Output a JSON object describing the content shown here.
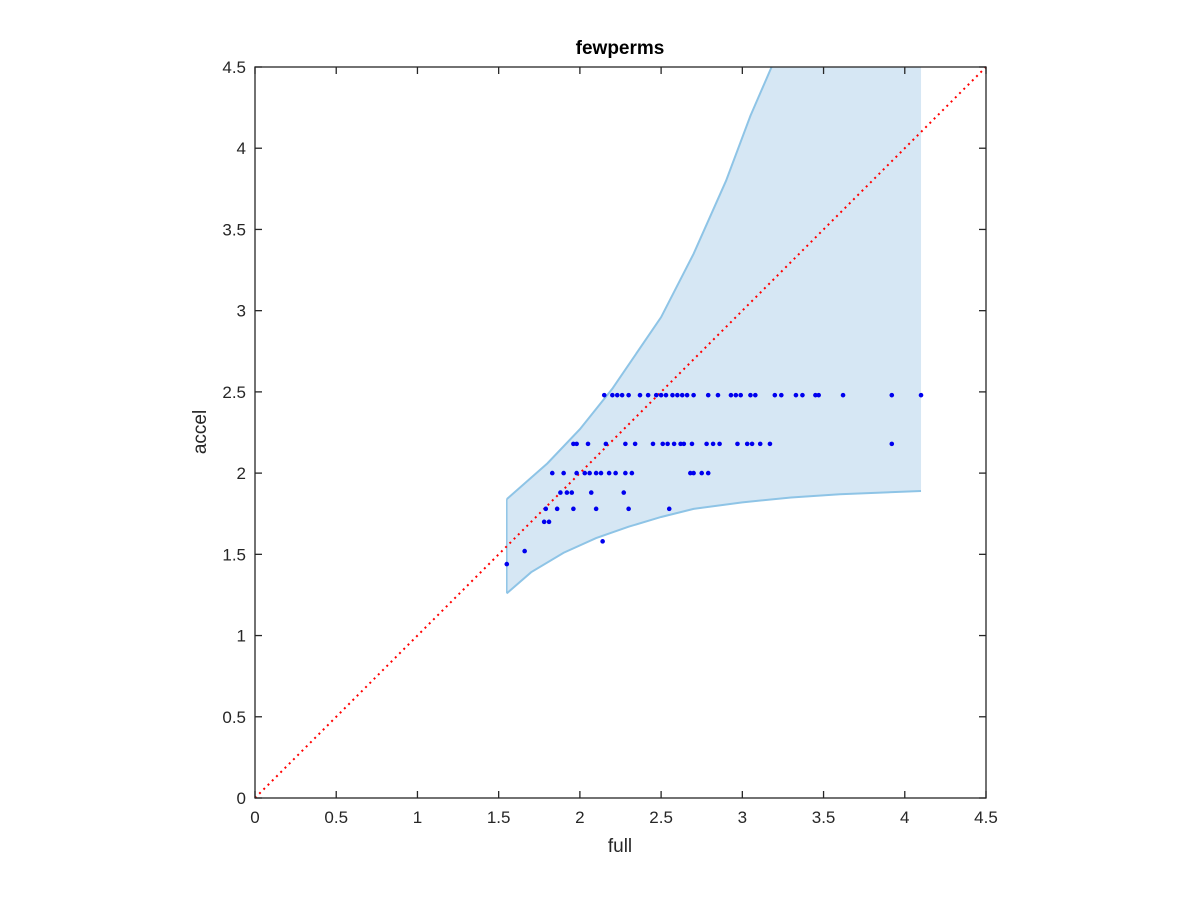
{
  "chart_data": {
    "type": "scatter",
    "title": "fewperms",
    "xlabel": "full",
    "ylabel": "accel",
    "xlim": [
      0,
      4.5
    ],
    "ylim": [
      0,
      4.5
    ],
    "xticks": [
      "0",
      "0.5",
      "1",
      "1.5",
      "2",
      "2.5",
      "3",
      "3.5",
      "4",
      "4.5"
    ],
    "yticks": [
      "0",
      "0.5",
      "1",
      "1.5",
      "2",
      "2.5",
      "3",
      "3.5",
      "4",
      "4.5"
    ],
    "grid": false,
    "reference_line": {
      "style": "dotted",
      "color": "#ff0000",
      "from": [
        0,
        0
      ],
      "to": [
        4.5,
        4.5
      ]
    },
    "band": {
      "color_fill": "#d6e7f4",
      "color_edge": "#8ec4e6",
      "upper": [
        [
          1.55,
          1.84
        ],
        [
          1.8,
          2.06
        ],
        [
          2.0,
          2.27
        ],
        [
          2.2,
          2.52
        ],
        [
          2.5,
          2.96
        ],
        [
          2.7,
          3.35
        ],
        [
          2.9,
          3.8
        ],
        [
          3.05,
          4.2
        ],
        [
          3.18,
          4.5
        ],
        [
          4.1,
          4.5
        ]
      ],
      "lower": [
        [
          1.55,
          1.26
        ],
        [
          1.7,
          1.39
        ],
        [
          1.9,
          1.51
        ],
        [
          2.1,
          1.6
        ],
        [
          2.3,
          1.67
        ],
        [
          2.5,
          1.73
        ],
        [
          2.7,
          1.78
        ],
        [
          3.0,
          1.82
        ],
        [
          3.3,
          1.85
        ],
        [
          3.6,
          1.87
        ],
        [
          4.1,
          1.89
        ]
      ]
    },
    "series": [
      {
        "color": "#0000ee",
        "points": [
          [
            1.55,
            1.44
          ],
          [
            1.66,
            1.52
          ],
          [
            2.14,
            1.58
          ],
          [
            1.78,
            1.7
          ],
          [
            1.81,
            1.7
          ],
          [
            1.79,
            1.78
          ],
          [
            1.86,
            1.78
          ],
          [
            1.96,
            1.78
          ],
          [
            2.1,
            1.78
          ],
          [
            2.3,
            1.78
          ],
          [
            2.55,
            1.78
          ],
          [
            1.88,
            1.88
          ],
          [
            1.92,
            1.88
          ],
          [
            1.95,
            1.88
          ],
          [
            2.07,
            1.88
          ],
          [
            2.27,
            1.88
          ],
          [
            1.83,
            2.0
          ],
          [
            1.9,
            2.0
          ],
          [
            1.98,
            2.0
          ],
          [
            2.03,
            2.0
          ],
          [
            2.06,
            2.0
          ],
          [
            2.1,
            2.0
          ],
          [
            2.13,
            2.0
          ],
          [
            2.18,
            2.0
          ],
          [
            2.22,
            2.0
          ],
          [
            2.28,
            2.0
          ],
          [
            2.32,
            2.0
          ],
          [
            2.68,
            2.0
          ],
          [
            2.7,
            2.0
          ],
          [
            2.75,
            2.0
          ],
          [
            2.79,
            2.0
          ],
          [
            1.96,
            2.18
          ],
          [
            1.98,
            2.18
          ],
          [
            2.05,
            2.18
          ],
          [
            2.16,
            2.18
          ],
          [
            2.28,
            2.18
          ],
          [
            2.34,
            2.18
          ],
          [
            2.45,
            2.18
          ],
          [
            2.51,
            2.18
          ],
          [
            2.54,
            2.18
          ],
          [
            2.58,
            2.18
          ],
          [
            2.62,
            2.18
          ],
          [
            2.64,
            2.18
          ],
          [
            2.69,
            2.18
          ],
          [
            2.78,
            2.18
          ],
          [
            2.82,
            2.18
          ],
          [
            2.86,
            2.18
          ],
          [
            2.97,
            2.18
          ],
          [
            3.03,
            2.18
          ],
          [
            3.06,
            2.18
          ],
          [
            3.11,
            2.18
          ],
          [
            3.17,
            2.18
          ],
          [
            3.92,
            2.18
          ],
          [
            2.15,
            2.48
          ],
          [
            2.2,
            2.48
          ],
          [
            2.23,
            2.48
          ],
          [
            2.26,
            2.48
          ],
          [
            2.3,
            2.48
          ],
          [
            2.37,
            2.48
          ],
          [
            2.42,
            2.48
          ],
          [
            2.47,
            2.48
          ],
          [
            2.5,
            2.48
          ],
          [
            2.53,
            2.48
          ],
          [
            2.57,
            2.48
          ],
          [
            2.6,
            2.48
          ],
          [
            2.63,
            2.48
          ],
          [
            2.66,
            2.48
          ],
          [
            2.7,
            2.48
          ],
          [
            2.79,
            2.48
          ],
          [
            2.85,
            2.48
          ],
          [
            2.93,
            2.48
          ],
          [
            2.96,
            2.48
          ],
          [
            2.99,
            2.48
          ],
          [
            3.05,
            2.48
          ],
          [
            3.08,
            2.48
          ],
          [
            3.2,
            2.48
          ],
          [
            3.24,
            2.48
          ],
          [
            3.33,
            2.48
          ],
          [
            3.37,
            2.48
          ],
          [
            3.45,
            2.48
          ],
          [
            3.47,
            2.48
          ],
          [
            3.62,
            2.48
          ],
          [
            3.92,
            2.48
          ],
          [
            4.1,
            2.48
          ]
        ]
      }
    ]
  }
}
